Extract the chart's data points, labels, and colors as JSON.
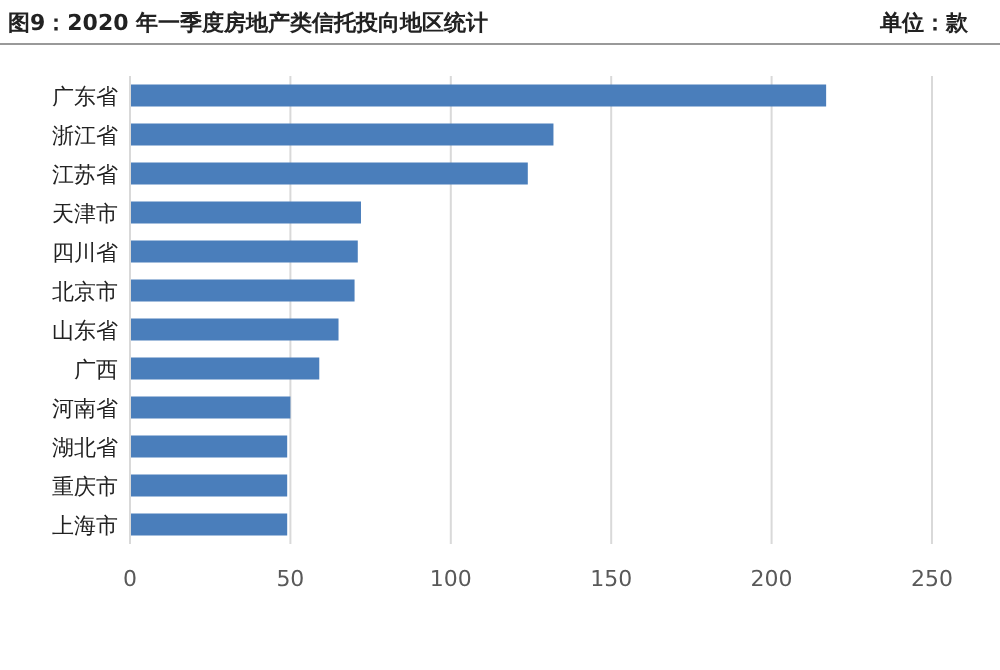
{
  "chart_data": {
    "type": "bar",
    "orientation": "horizontal",
    "title": "图9：2020 年一季度房地产类信托投向地区统计",
    "subtitle": "单位：款",
    "categories": [
      "广东省",
      "浙江省",
      "江苏省",
      "天津市",
      "四川省",
      "北京市",
      "山东省",
      "广西",
      "河南省",
      "湖北省",
      "重庆市",
      "上海市"
    ],
    "values": [
      217,
      132,
      124,
      72,
      71,
      70,
      65,
      59,
      50,
      49,
      49,
      49
    ],
    "color": "#4a7ebb",
    "xlim": [
      0,
      250
    ],
    "xticks": [
      0,
      50,
      100,
      150,
      200,
      250
    ],
    "grid": "x"
  }
}
